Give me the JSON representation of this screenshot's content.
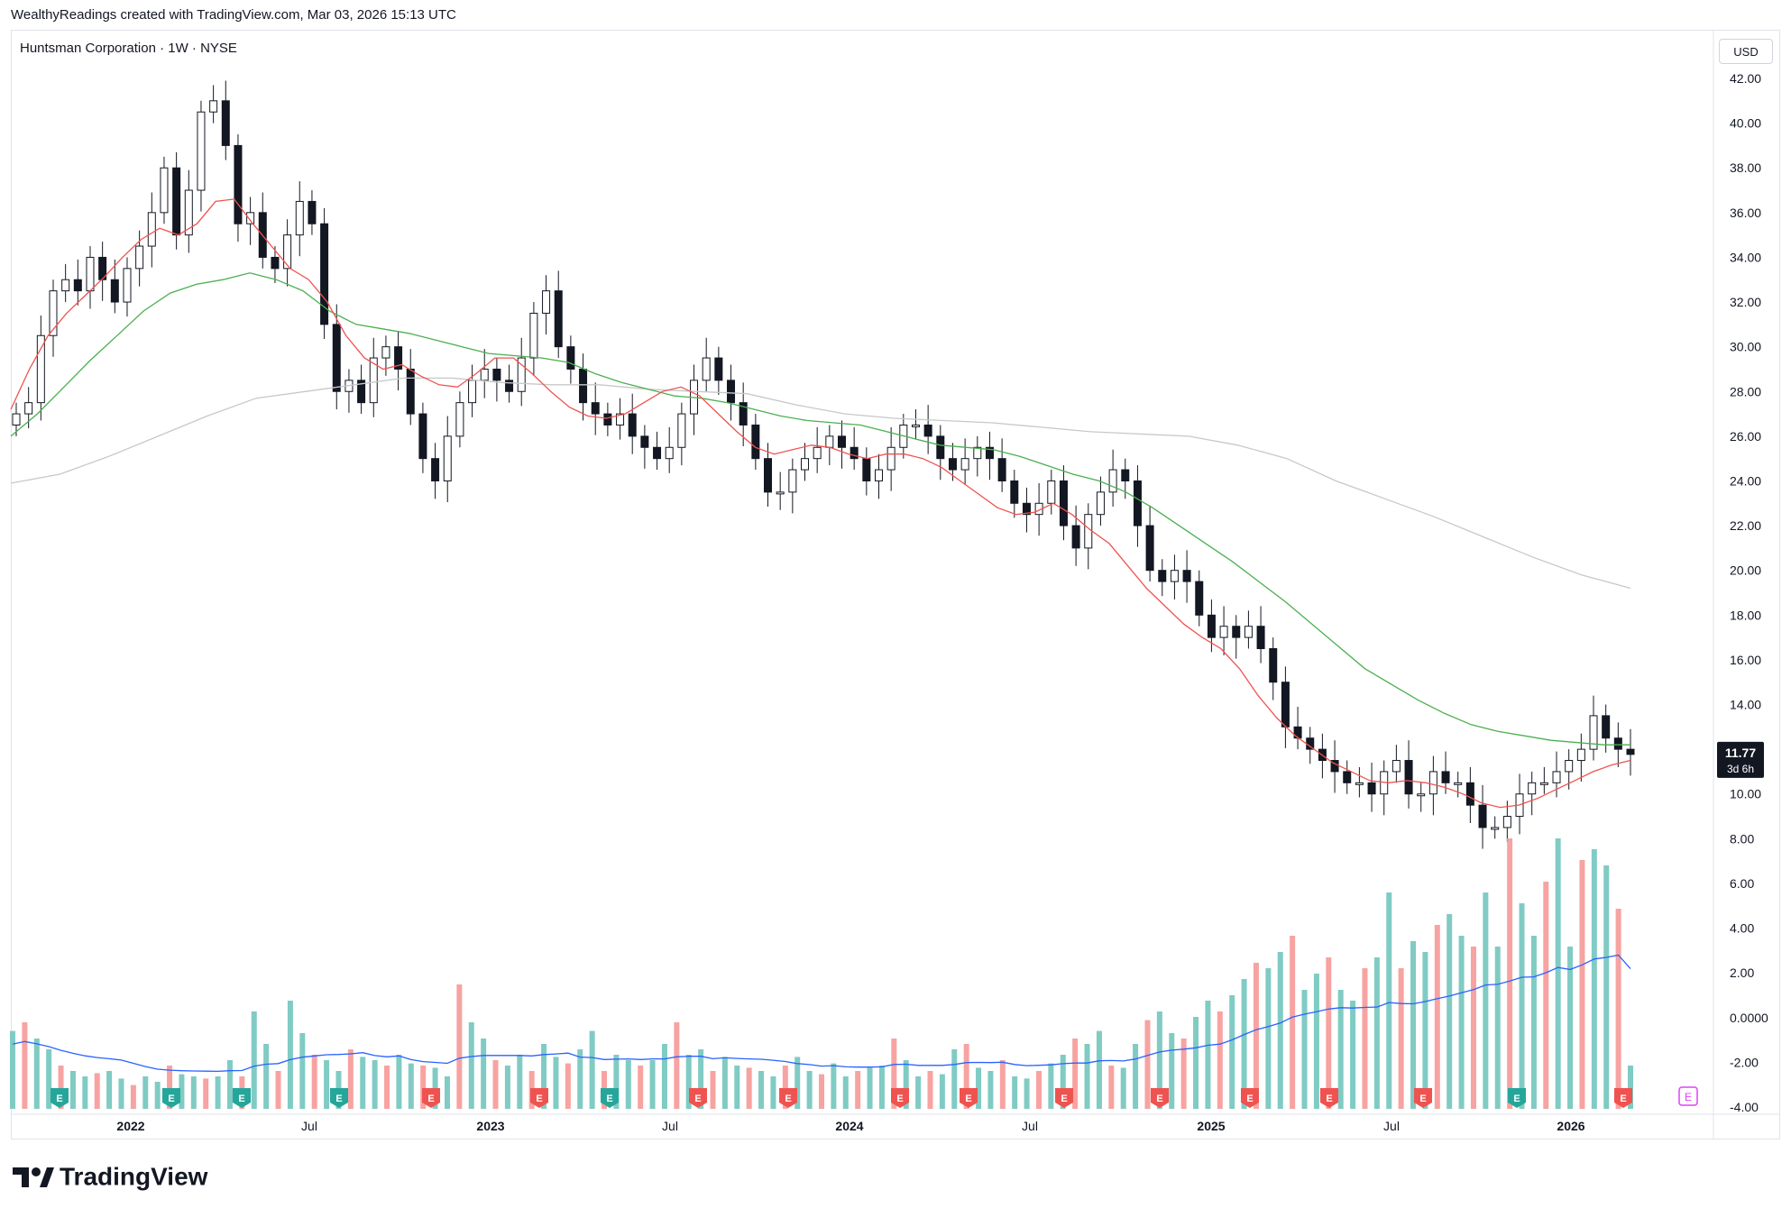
{
  "header": {
    "caption": "WealthyReadings created with TradingView.com, Mar 03, 2026 15:13 UTC"
  },
  "symbol": {
    "title": "Huntsman Corporation · 1W · NYSE"
  },
  "currency": {
    "label": "USD"
  },
  "last_price": {
    "value": "11.77",
    "countdown": "3d 6h"
  },
  "footer": {
    "brand": "TradingView"
  },
  "colors": {
    "up": "#26a69a",
    "down": "#ef5350",
    "ema_fast": "#ef5350",
    "ema_mid": "#4caf50",
    "ema_slow": "#c8c8c8",
    "vol_ma": "#2962ff",
    "bull_vol": "#80cbc4",
    "bear_vol": "#f7a3a1",
    "earn_up": "#26a69a",
    "earn_down": "#ef5350",
    "earn_future": "#e040fb"
  },
  "chart_data": {
    "type": "candlestick",
    "title": "Huntsman Corporation · 1W · NYSE",
    "y_axis": {
      "min": -4,
      "max": 42,
      "ticks": [
        "42.00",
        "40.00",
        "38.00",
        "36.00",
        "34.00",
        "32.00",
        "30.00",
        "28.00",
        "26.00",
        "24.00",
        "22.00",
        "20.00",
        "18.00",
        "16.00",
        "14.00",
        "12.00",
        "10.00",
        "8.00",
        "6.00",
        "4.00",
        "2.00",
        "0.0000",
        "-2.00",
        "-4.00"
      ]
    },
    "x_axis": {
      "labels": [
        "2022",
        "Jul",
        "2023",
        "Jul",
        "2024",
        "Jul",
        "2025",
        "Jul",
        "2026"
      ]
    },
    "close_path": [
      27.0,
      27.5,
      30.5,
      32.5,
      33.0,
      32.5,
      34.0,
      33.0,
      32.0,
      33.5,
      34.5,
      36.0,
      38.0,
      35.0,
      37.0,
      40.5,
      41.0,
      39.0,
      35.5,
      36.0,
      34.0,
      33.5,
      35.0,
      36.5,
      35.5,
      31.0,
      28.0,
      28.5,
      27.5,
      29.5,
      30.0,
      29.0,
      27.0,
      25.0,
      24.0,
      26.0,
      27.5,
      28.5,
      29.0,
      28.5,
      28.0,
      29.5,
      31.5,
      32.5,
      30.0,
      29.0,
      27.5,
      27.0,
      26.5,
      27.0,
      26.0,
      25.5,
      25.0,
      25.5,
      27.0,
      28.5,
      29.5,
      28.5,
      27.5,
      26.5,
      25.0,
      23.5,
      23.5,
      24.5,
      25.0,
      25.5,
      26.0,
      25.5,
      25.0,
      24.0,
      24.5,
      25.5,
      26.5,
      26.5,
      26.0,
      25.0,
      24.5,
      25.0,
      25.5,
      25.0,
      24.0,
      23.0,
      22.5,
      23.0,
      24.0,
      22.0,
      21.0,
      22.5,
      23.5,
      24.5,
      24.0,
      22.0,
      20.0,
      19.5,
      20.0,
      19.5,
      18.0,
      17.0,
      17.5,
      17.0,
      17.5,
      16.5,
      15.0,
      13.0,
      12.5,
      12.0,
      11.5,
      11.0,
      10.5,
      10.5,
      10.0,
      11.0,
      11.5,
      10.0,
      10.0,
      11.0,
      10.5,
      10.5,
      9.5,
      8.5,
      8.5,
      9.0,
      10.0,
      10.5,
      10.5,
      11.0,
      11.5,
      12.0,
      13.5,
      12.5,
      12.0,
      11.77
    ],
    "ema_fast_path": [
      27.2,
      29.0,
      30.5,
      31.5,
      32.3,
      33.1,
      34.0,
      34.8,
      35.3,
      35.0,
      35.5,
      36.5,
      36.6,
      35.5,
      34.5,
      33.5,
      33.0,
      32.0,
      30.5,
      29.5,
      29.0,
      29.2,
      28.7,
      28.3,
      28.2,
      28.8,
      29.5,
      29.5,
      28.8,
      28.0,
      27.3,
      26.9,
      26.8,
      27.0,
      27.5,
      28.0,
      28.2,
      27.8,
      27.0,
      26.2,
      25.5,
      25.2,
      25.4,
      25.6,
      25.5,
      25.2,
      25.0,
      25.2,
      25.2,
      25.0,
      24.6,
      24.0,
      23.4,
      22.8,
      22.5,
      22.6,
      23.0,
      22.5,
      21.8,
      21.2,
      20.2,
      19.2,
      18.4,
      17.6,
      17.0,
      16.5,
      15.6,
      14.4,
      13.4,
      12.6,
      12.0,
      11.4,
      11.0,
      10.6,
      10.5,
      10.6,
      10.5,
      10.3,
      10.0,
      9.6,
      9.4,
      9.5,
      9.8,
      10.2,
      10.6,
      11.0,
      11.3,
      11.5
    ],
    "ema_mid_path": [
      26.0,
      27.0,
      28.2,
      29.4,
      30.5,
      31.6,
      32.4,
      32.8,
      33.0,
      33.3,
      33.0,
      32.5,
      31.6,
      31.0,
      30.8,
      30.6,
      30.3,
      30.0,
      29.7,
      29.6,
      29.5,
      29.3,
      28.8,
      28.4,
      28.1,
      27.8,
      27.7,
      27.5,
      27.2,
      26.9,
      26.7,
      26.6,
      26.5,
      26.2,
      25.9,
      25.6,
      25.5,
      25.4,
      25.1,
      24.7,
      24.3,
      24.0,
      23.5,
      22.8,
      22.0,
      21.2,
      20.4,
      19.5,
      18.6,
      17.6,
      16.6,
      15.6,
      14.9,
      14.2,
      13.6,
      13.1,
      12.8,
      12.6,
      12.4,
      12.3,
      12.2,
      12.2
    ],
    "ema_slow_path": [
      23.9,
      24.3,
      25.1,
      26.0,
      26.9,
      27.7,
      28.0,
      28.3,
      28.6,
      28.6,
      28.4,
      28.3,
      28.3,
      28.1,
      28.0,
      27.9,
      27.4,
      27.0,
      26.8,
      26.7,
      26.6,
      26.4,
      26.2,
      26.1,
      26.0,
      25.6,
      25.0,
      24.0,
      23.2,
      22.4,
      21.5,
      20.6,
      19.8,
      19.2
    ],
    "volume_note": "Volume histogram shown in lower pane with moving-average line; shares volume axis with price scale",
    "volume_bars": [
      0.72,
      0.8,
      0.65,
      0.55,
      0.4,
      0.35,
      0.3,
      0.33,
      0.35,
      0.28,
      0.22,
      0.3,
      0.25,
      0.4,
      0.32,
      0.3,
      0.28,
      0.3,
      0.45,
      0.3,
      0.9,
      0.6,
      0.35,
      1.0,
      0.7,
      0.5,
      0.45,
      0.35,
      0.55,
      0.48,
      0.45,
      0.4,
      0.5,
      0.42,
      0.4,
      0.38,
      0.3,
      1.15,
      0.8,
      0.65,
      0.45,
      0.4,
      0.5,
      0.35,
      0.6,
      0.48,
      0.42,
      0.55,
      0.72,
      0.35,
      0.5,
      0.45,
      0.4,
      0.45,
      0.6,
      0.8,
      0.5,
      0.55,
      0.35,
      0.48,
      0.4,
      0.38,
      0.35,
      0.3,
      0.4,
      0.48,
      0.35,
      0.32,
      0.42,
      0.3,
      0.35,
      0.38,
      0.4,
      0.65,
      0.45,
      0.3,
      0.35,
      0.32,
      0.55,
      0.6,
      0.38,
      0.35,
      0.45,
      0.3,
      0.28,
      0.35,
      0.42,
      0.5,
      0.65,
      0.6,
      0.72,
      0.4,
      0.38,
      0.6,
      0.82,
      0.9,
      0.7,
      0.65,
      0.85,
      1.0,
      0.9,
      1.05,
      1.2,
      1.35,
      1.3,
      1.45,
      1.6,
      1.1,
      1.25,
      1.4,
      1.1,
      1.0,
      1.3,
      1.4,
      2.0,
      1.3,
      1.55,
      1.45,
      1.7,
      1.8,
      1.6,
      1.5,
      2.0,
      1.5,
      2.5,
      1.9,
      1.6,
      2.1,
      2.5,
      1.5,
      2.3,
      2.4,
      2.25,
      1.85,
      0.4
    ]
  }
}
